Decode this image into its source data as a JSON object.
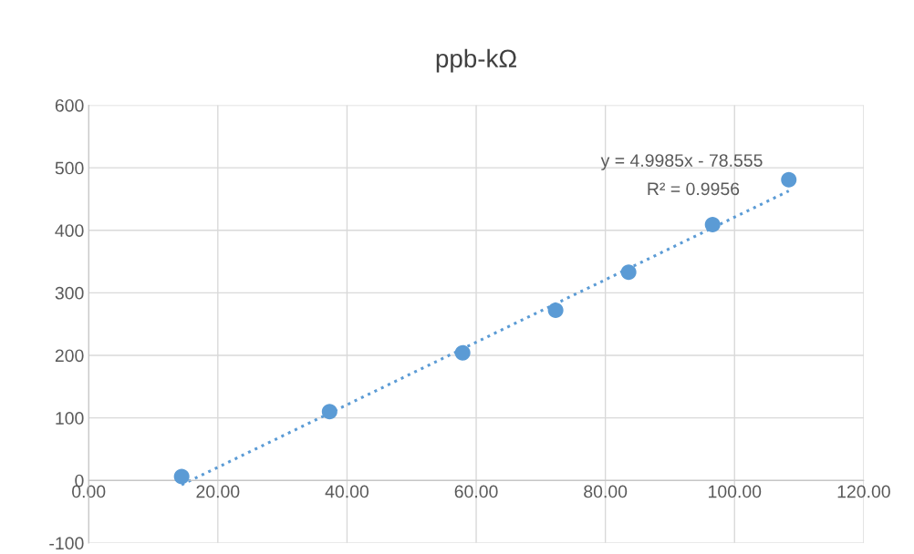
{
  "chart_data": {
    "type": "scatter",
    "title": "ppb-kΩ",
    "series": [
      {
        "color": "#5b9bd5",
        "marker": "circle",
        "x": [
          14.4,
          37.3,
          57.9,
          72.3,
          83.6,
          96.6,
          108.4
        ],
        "values": [
          6,
          110,
          204,
          272,
          333,
          409,
          481
        ]
      },
      {
        "type": "line",
        "color": "#5b9bd5",
        "marker": "none",
        "line_style": "dotted",
        "x": [
          14.4,
          108.4
        ],
        "values": [
          -7,
          463
        ]
      }
    ],
    "annotations": [
      "y = 4.9985x - 78.555",
      "R² = 0.9956"
    ],
    "xlim": [
      0,
      120
    ],
    "ylim": [
      -100,
      600
    ],
    "xticks": [
      {
        "value": 0,
        "label": "0.00"
      },
      {
        "value": 20,
        "label": "20.00"
      },
      {
        "value": 40,
        "label": "40.00"
      },
      {
        "value": 60,
        "label": "60.00"
      },
      {
        "value": 80,
        "label": "80.00"
      },
      {
        "value": 100,
        "label": "100.00"
      },
      {
        "value": 120,
        "label": "120.00"
      }
    ],
    "yticks": [
      -100,
      0,
      100,
      200,
      300,
      400,
      500,
      600
    ],
    "grid": true
  }
}
